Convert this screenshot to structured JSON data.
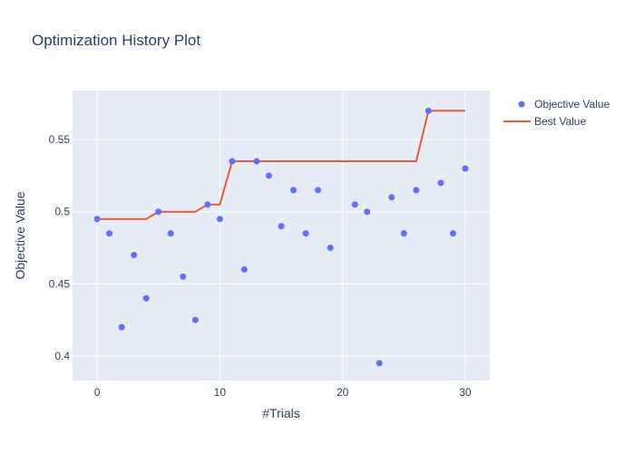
{
  "chart_data": {
    "type": "scatter",
    "title": "Optimization History Plot",
    "xlabel": "#Trials",
    "ylabel": "Objective Value",
    "xlim": [
      -2,
      32
    ],
    "ylim": [
      0.383,
      0.584
    ],
    "xticks": [
      0,
      10,
      20,
      30
    ],
    "xtick_labels": [
      "0",
      "10",
      "20",
      "30"
    ],
    "yticks": [
      0.4,
      0.45,
      0.5,
      0.55
    ],
    "ytick_labels": [
      "0.4",
      "0.45",
      "0.5",
      "0.55"
    ],
    "grid": true,
    "legend_position": "top-right",
    "colors": {
      "background": "#e5ecf6",
      "grid": "#ffffff",
      "text": "#2a3f5f",
      "objective": "#636efa",
      "best": "#ef553b"
    },
    "series": [
      {
        "name": "Objective Value",
        "mode": "markers",
        "x": [
          0,
          1,
          2,
          3,
          4,
          5,
          6,
          7,
          8,
          9,
          10,
          11,
          12,
          13,
          14,
          15,
          16,
          17,
          18,
          19,
          21,
          22,
          23,
          24,
          25,
          26,
          27,
          28,
          29,
          30
        ],
        "y": [
          0.495,
          0.485,
          0.42,
          0.47,
          0.44,
          0.5,
          0.485,
          0.455,
          0.425,
          0.505,
          0.495,
          0.535,
          0.46,
          0.535,
          0.525,
          0.49,
          0.515,
          0.485,
          0.515,
          0.475,
          0.505,
          0.5,
          0.395,
          0.51,
          0.485,
          0.515,
          0.57,
          0.52,
          0.485,
          0.53
        ]
      },
      {
        "name": "Best Value",
        "mode": "line",
        "x": [
          0,
          1,
          2,
          3,
          4,
          5,
          6,
          7,
          8,
          9,
          10,
          11,
          12,
          13,
          14,
          15,
          16,
          17,
          18,
          19,
          21,
          22,
          23,
          24,
          25,
          26,
          27,
          28,
          29,
          30
        ],
        "y": [
          0.495,
          0.495,
          0.495,
          0.495,
          0.495,
          0.5,
          0.5,
          0.5,
          0.5,
          0.505,
          0.505,
          0.535,
          0.535,
          0.535,
          0.535,
          0.535,
          0.535,
          0.535,
          0.535,
          0.535,
          0.535,
          0.535,
          0.535,
          0.535,
          0.535,
          0.535,
          0.57,
          0.57,
          0.57,
          0.57
        ]
      }
    ]
  }
}
